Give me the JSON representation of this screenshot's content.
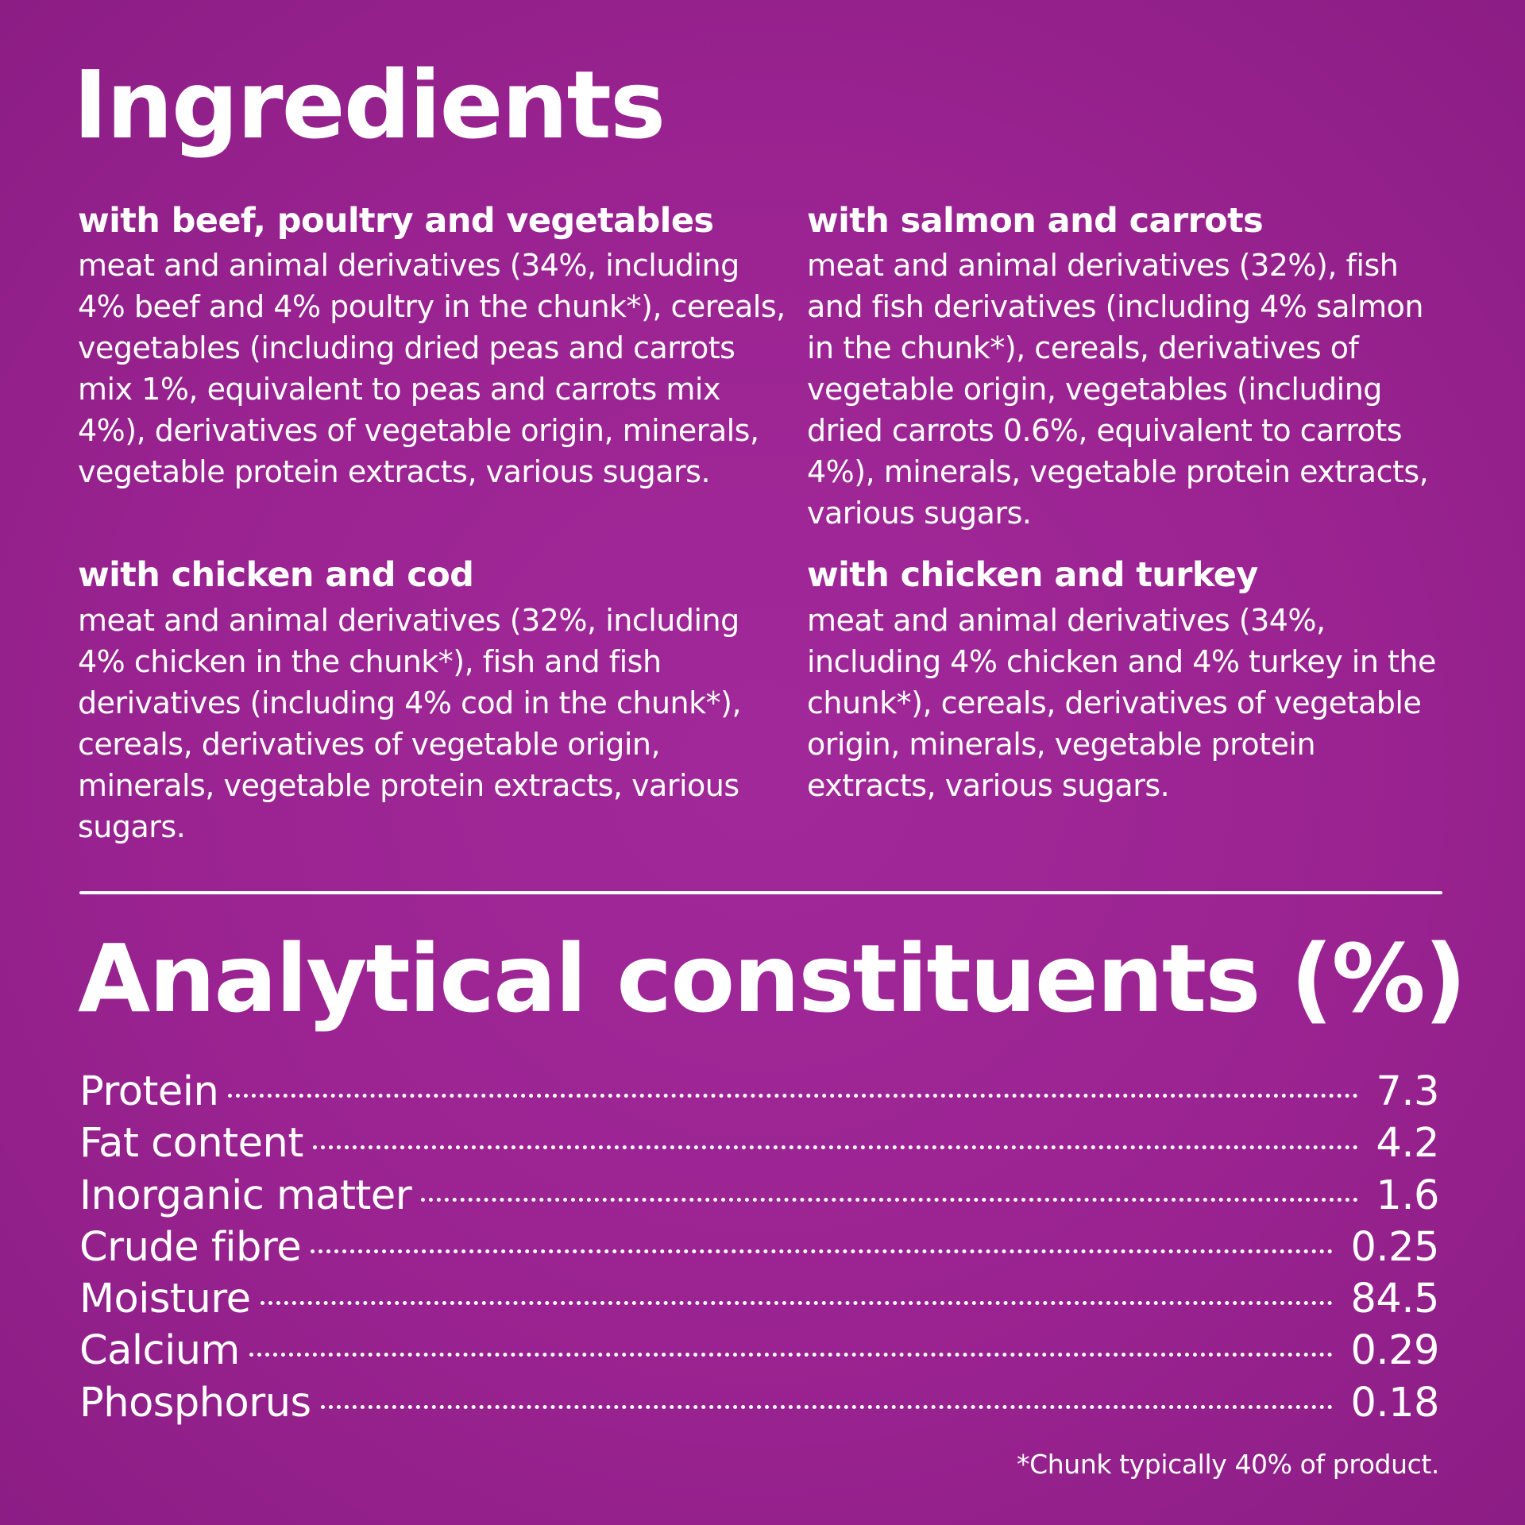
{
  "ingredients": {
    "title": "Ingredients",
    "recipes": [
      {
        "name": "with beef, poultry and vegetables",
        "text": "meat and animal derivatives (34%, including 4% beef and 4% poultry in the chunk*), cereals, vegetables (including dried peas and carrots mix 1%, equivalent to peas and carrots mix 4%), derivatives of vegetable origin, minerals, vegetable protein extracts, various sugars."
      },
      {
        "name": "with salmon and carrots",
        "text": "meat and animal derivatives (32%), fish and fish derivatives (including 4% salmon in the chunk*), cereals, derivatives of vegetable origin, vegetables (including dried carrots 0.6%, equivalent to carrots 4%), minerals, vegetable protein extracts, various sugars."
      },
      {
        "name": "with chicken and cod",
        "text": "meat and animal derivatives (32%, including 4% chicken in the chunk*), fish and fish derivatives (including 4% cod in the chunk*), cereals, derivatives of vegetable origin, minerals, vegetable protein extracts, various sugars."
      },
      {
        "name": "with chicken and turkey",
        "text": "meat and animal derivatives (34%, including 4% chicken and 4% turkey in the chunk*), cereals, derivatives of vegetable origin, minerals, vegetable protein extracts, various sugars."
      }
    ]
  },
  "analytical": {
    "title": "Analytical constituents (%)",
    "rows": [
      {
        "name": "Protein",
        "value": "7.3"
      },
      {
        "name": "Fat content",
        "value": "4.2"
      },
      {
        "name": "Inorganic matter",
        "value": "1.6"
      },
      {
        "name": "Crude fibre",
        "value": "0.25"
      },
      {
        "name": "Moisture",
        "value": "84.5"
      },
      {
        "name": "Calcium",
        "value": "0.29"
      },
      {
        "name": "Phosphorus",
        "value": "0.18"
      }
    ]
  },
  "footnote": "*Chunk typically 40% of product.",
  "colors": {
    "background": "#9a2391",
    "text": "#ffffff"
  }
}
